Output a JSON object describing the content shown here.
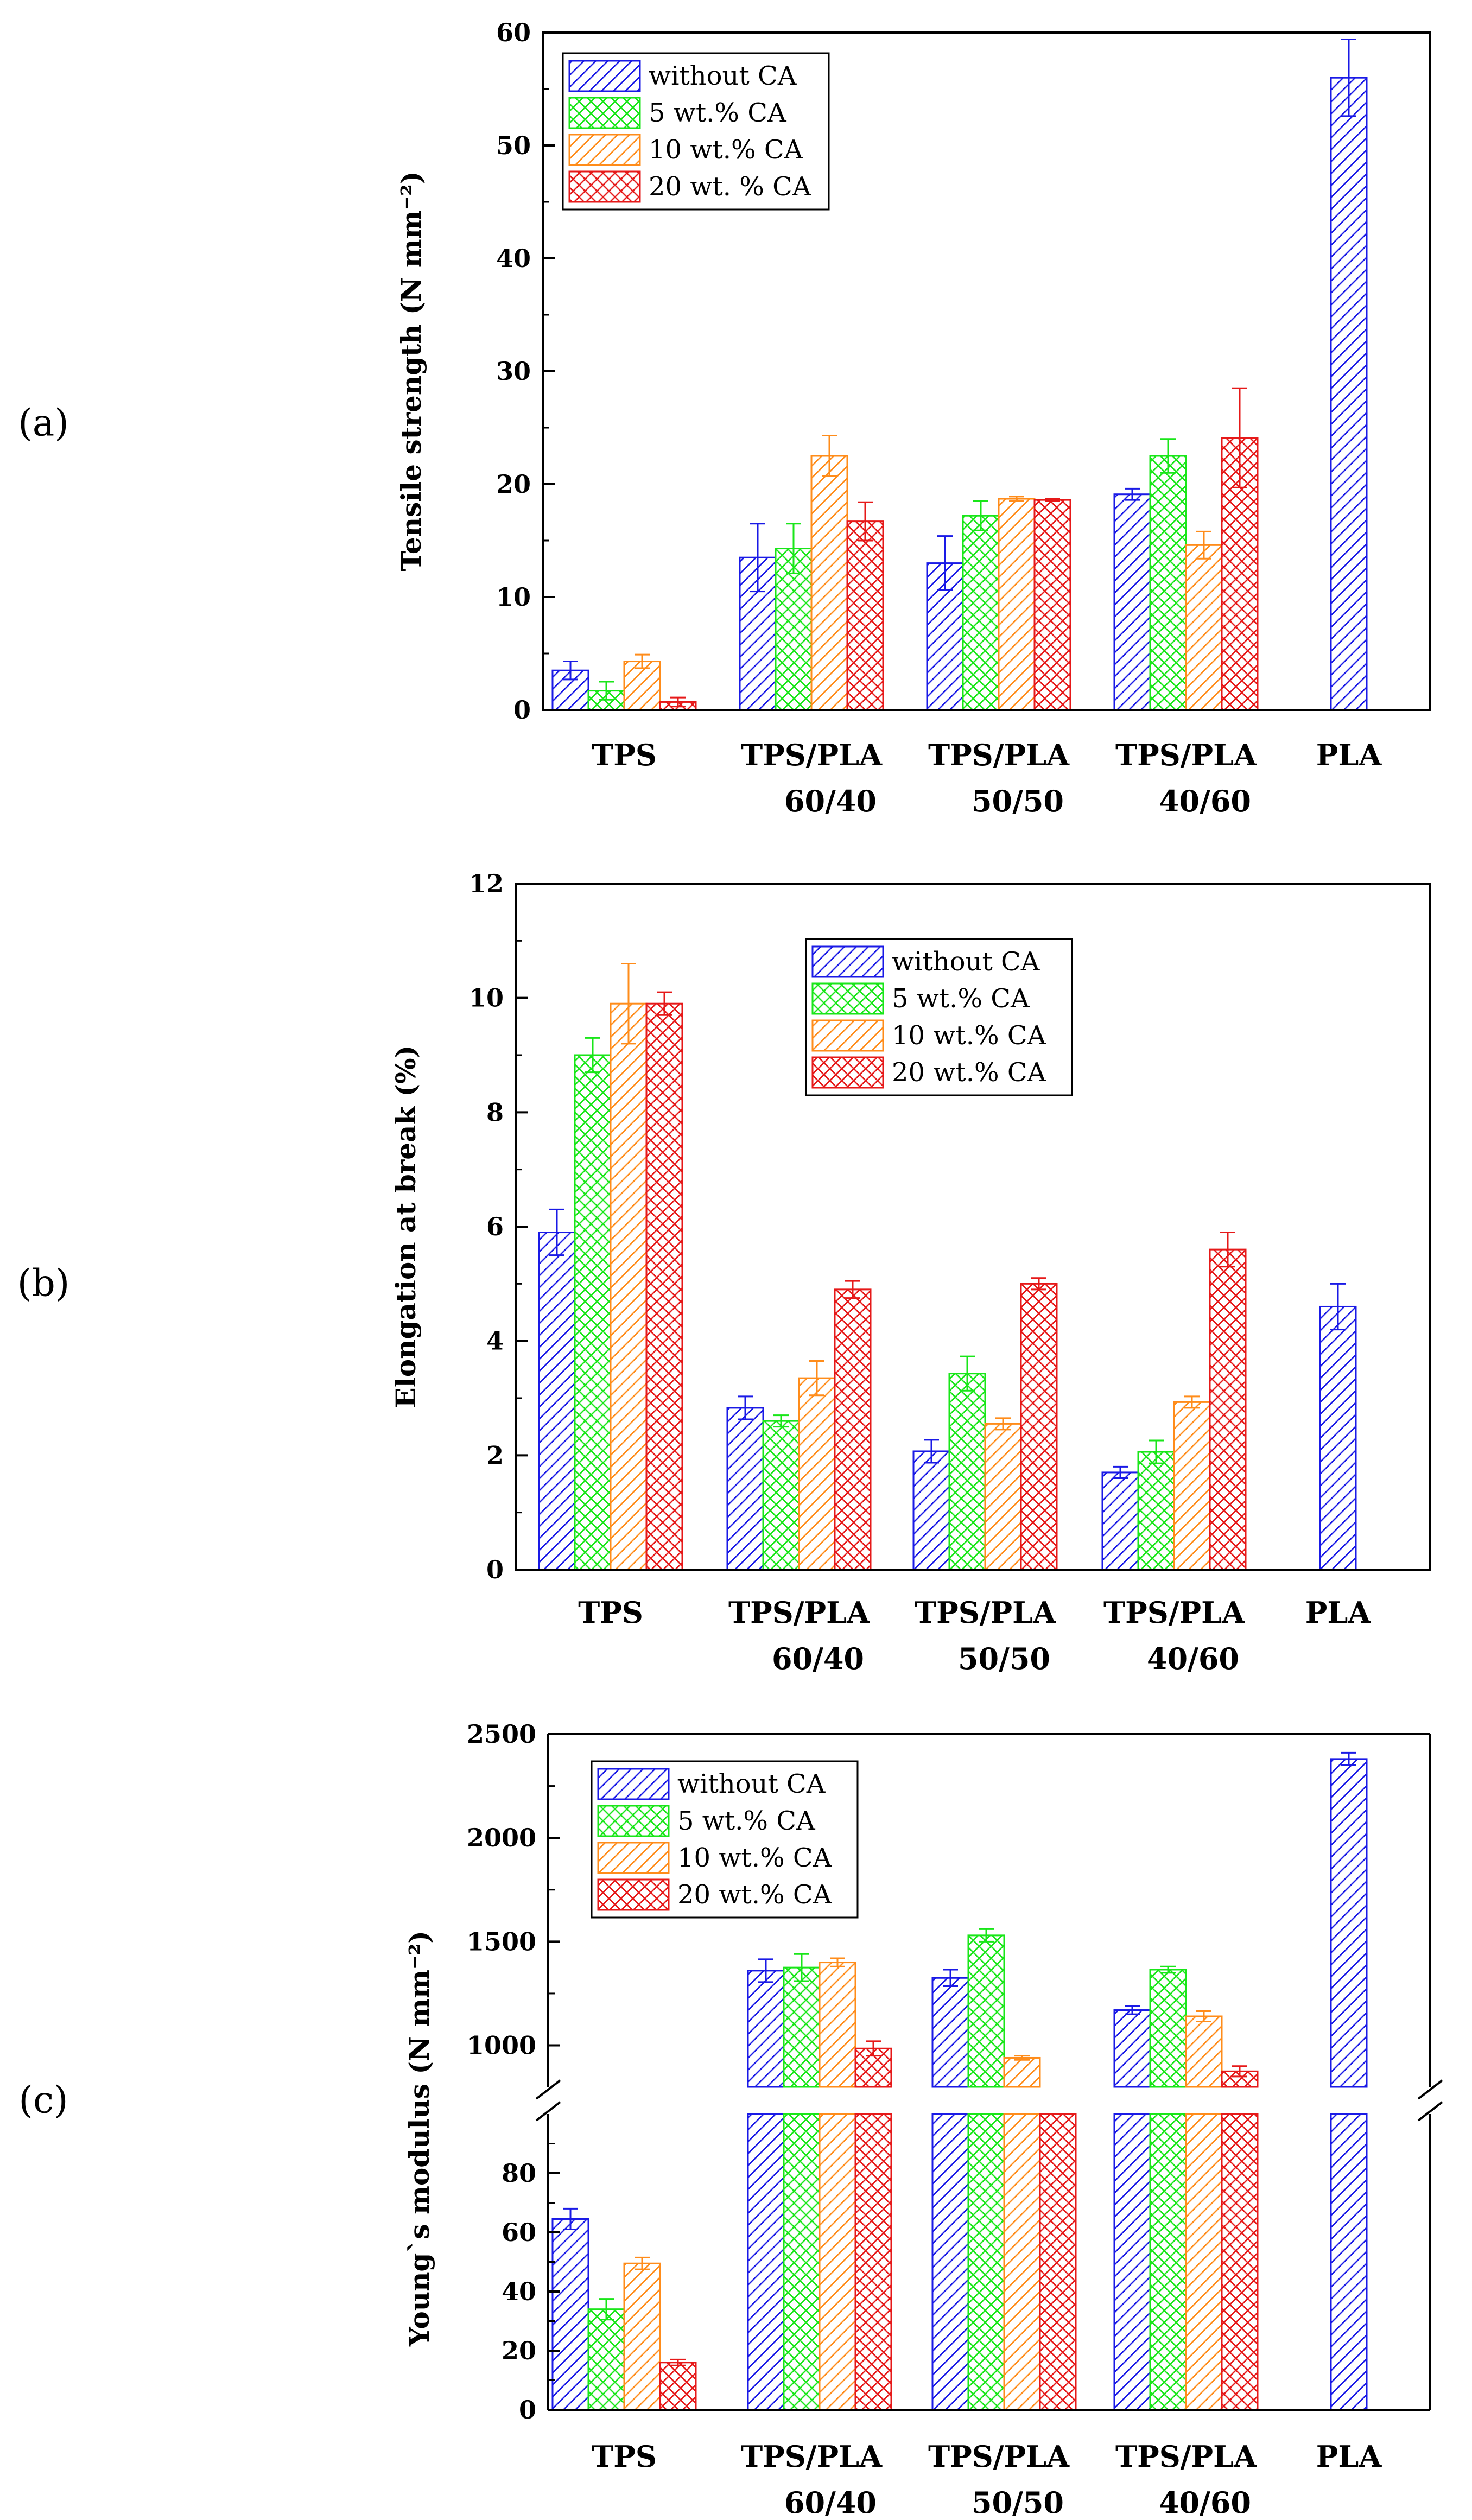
{
  "figure": {
    "series_colors": {
      "without CA": "#1a1ae6",
      "5 wt.% CA": "#19e619",
      "10 wt.% CA": "#ff8c1a",
      "20 wt. % CA": "#e61919"
    }
  },
  "chart_data": [
    {
      "type": "bar",
      "panel_label": "(a)",
      "ylabel": "Tensile strength (N mm⁻²)",
      "xlabel": "",
      "ylim": [
        0,
        60
      ],
      "yticks": [
        0,
        10,
        20,
        30,
        40,
        50,
        60
      ],
      "ytick_labels": [
        "0",
        "10",
        "20",
        "30",
        "40",
        "50",
        "60"
      ],
      "legend_position": "top-left",
      "categories": [
        {
          "line1": "TPS",
          "line2": ""
        },
        {
          "line1": "TPS/PLA",
          "line2": "60/40"
        },
        {
          "line1": "TPS/PLA",
          "line2": "50/50"
        },
        {
          "line1": "TPS/PLA",
          "line2": "40/60"
        },
        {
          "line1": "PLA",
          "line2": ""
        }
      ],
      "series": [
        {
          "name": "without CA",
          "values": [
            3.5,
            13.5,
            13.0,
            19.1,
            56.0
          ],
          "errors": [
            0.8,
            3.0,
            2.4,
            0.5,
            3.4
          ]
        },
        {
          "name": "5 wt.% CA",
          "values": [
            1.7,
            14.3,
            17.2,
            22.5,
            null
          ],
          "errors": [
            0.8,
            2.2,
            1.3,
            1.5,
            null
          ]
        },
        {
          "name": "10 wt.% CA",
          "values": [
            4.3,
            22.5,
            18.7,
            14.6,
            null
          ],
          "errors": [
            0.6,
            1.8,
            0.2,
            1.2,
            null
          ]
        },
        {
          "name": "20 wt. % CA",
          "values": [
            0.7,
            16.7,
            18.6,
            24.1,
            null
          ],
          "errors": [
            0.4,
            1.7,
            0.1,
            4.4,
            null
          ]
        }
      ]
    },
    {
      "type": "bar",
      "panel_label": "(b)",
      "ylabel": "Elongation at break (%)",
      "xlabel": "",
      "ylim": [
        0,
        12
      ],
      "yticks": [
        0,
        2,
        4,
        6,
        8,
        10,
        12
      ],
      "ytick_labels": [
        "0",
        "2",
        "4",
        "6",
        "8",
        "10",
        "12"
      ],
      "legend_position": "top-center",
      "categories": [
        {
          "line1": "TPS",
          "line2": ""
        },
        {
          "line1": "TPS/PLA",
          "line2": "60/40"
        },
        {
          "line1": "TPS/PLA",
          "line2": "50/50"
        },
        {
          "line1": "TPS/PLA",
          "line2": "40/60"
        },
        {
          "line1": "PLA",
          "line2": ""
        }
      ],
      "series": [
        {
          "name": "without CA",
          "values": [
            5.9,
            2.83,
            2.07,
            1.7,
            4.6
          ],
          "errors": [
            0.4,
            0.2,
            0.2,
            0.1,
            0.4
          ]
        },
        {
          "name": "5 wt.% CA",
          "values": [
            9.0,
            2.6,
            3.43,
            2.06,
            null
          ],
          "errors": [
            0.3,
            0.1,
            0.3,
            0.2,
            null
          ]
        },
        {
          "name": "10 wt.% CA",
          "values": [
            9.9,
            3.35,
            2.55,
            2.93,
            null
          ],
          "errors": [
            0.7,
            0.3,
            0.1,
            0.1,
            null
          ]
        },
        {
          "name": "20 wt.% CA",
          "values": [
            9.9,
            4.9,
            5.0,
            5.6,
            null
          ],
          "errors": [
            0.2,
            0.15,
            0.1,
            0.3,
            null
          ]
        }
      ]
    },
    {
      "type": "bar",
      "panel_label": "(c)",
      "ylabel": "Young`s modulus (N mm⁻²)",
      "xlabel": "",
      "broken_axis": {
        "lower_range": [
          0,
          100
        ],
        "upper_range": [
          800,
          2500
        ]
      },
      "yticks_lower": [
        0,
        20,
        40,
        60,
        80
      ],
      "ytick_labels_lower": [
        "0",
        "20",
        "40",
        "60",
        "80"
      ],
      "yticks_upper": [
        1000,
        1500,
        2000,
        2500
      ],
      "ytick_labels_upper": [
        "1000",
        "1500",
        "2000",
        "2500"
      ],
      "legend_position": "top-left",
      "categories": [
        {
          "line1": "TPS",
          "line2": ""
        },
        {
          "line1": "TPS/PLA",
          "line2": "60/40"
        },
        {
          "line1": "TPS/PLA",
          "line2": "50/50"
        },
        {
          "line1": "TPS/PLA",
          "line2": "40/60"
        },
        {
          "line1": "PLA",
          "line2": ""
        }
      ],
      "series": [
        {
          "name": "without CA",
          "values": [
            64.5,
            1360,
            1325,
            1170,
            2380
          ],
          "errors": [
            3.5,
            55,
            40,
            20,
            30
          ]
        },
        {
          "name": "5 wt.% CA",
          "values": [
            34,
            1375,
            1530,
            1365,
            null
          ],
          "errors": [
            3.5,
            65,
            30,
            15,
            null
          ]
        },
        {
          "name": "10 wt.% CA",
          "values": [
            49.5,
            1400,
            940,
            1140,
            null
          ],
          "errors": [
            2,
            20,
            10,
            25,
            null
          ]
        },
        {
          "name": "20 wt.% CA",
          "values": [
            16,
            985,
            null,
            875,
            null
          ],
          "errors": [
            1,
            35,
            null,
            25,
            null
          ]
        }
      ]
    }
  ]
}
